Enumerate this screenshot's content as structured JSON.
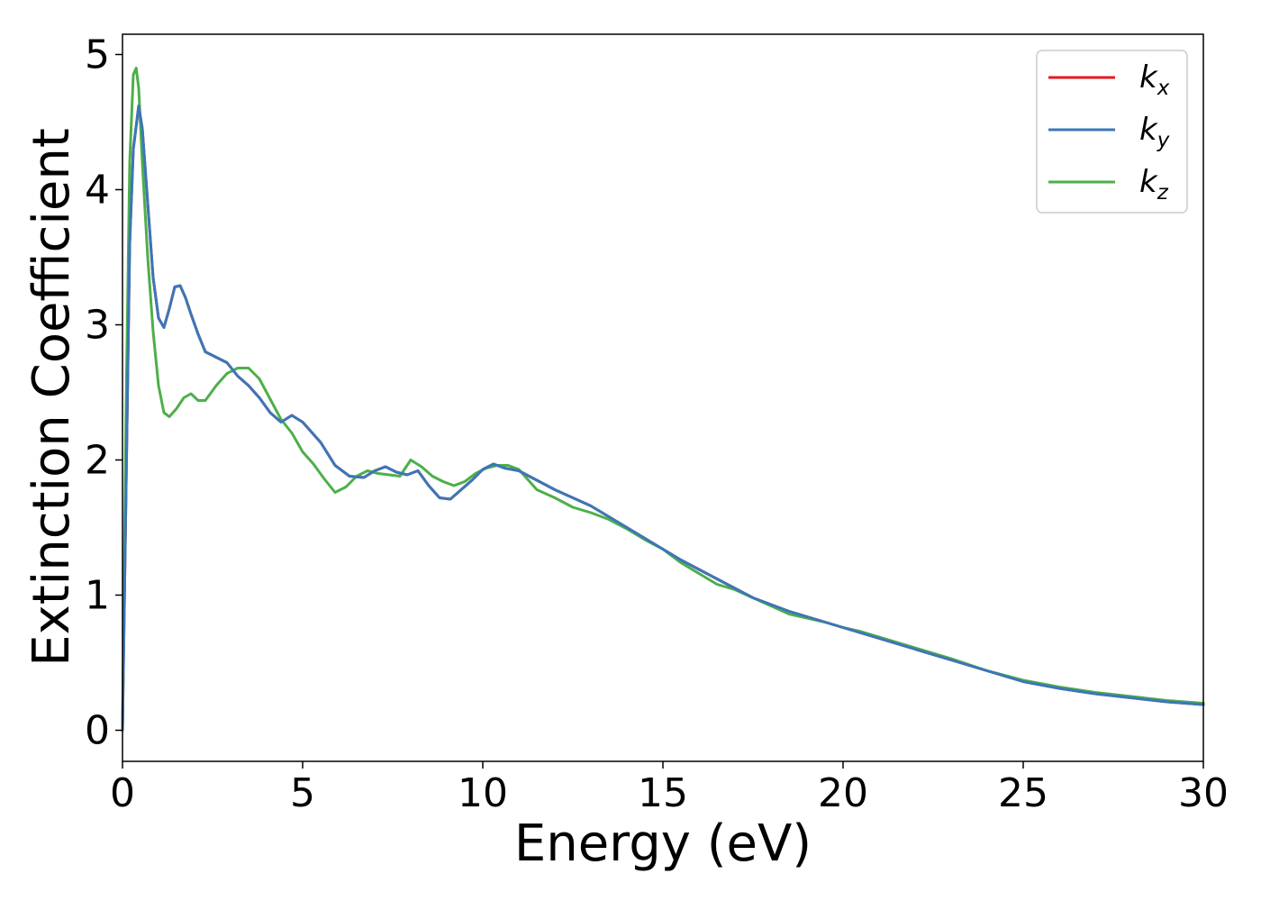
{
  "chart_data": {
    "type": "line",
    "title": "",
    "xlabel": "Energy (eV)",
    "ylabel": "Extinction Coefficient",
    "xlim": [
      0,
      30
    ],
    "ylim": [
      -0.23,
      5.15
    ],
    "xticks": [
      0,
      5,
      10,
      15,
      20,
      25,
      30
    ],
    "yticks": [
      0,
      1,
      2,
      3,
      4,
      5
    ],
    "xtick_labels": [
      "0",
      "5",
      "10",
      "15",
      "20",
      "25",
      "30"
    ],
    "ytick_labels": [
      "0",
      "1",
      "2",
      "3",
      "4",
      "5"
    ],
    "grid": false,
    "legend_position": "top-right",
    "series": [
      {
        "name": "k_x",
        "label_main": "k",
        "label_sub": "x",
        "color": "#e41a1c",
        "x": [
          0,
          0.1,
          0.2,
          0.3,
          0.45,
          0.55,
          0.7,
          0.85,
          1.0,
          1.15,
          1.3,
          1.45,
          1.6,
          1.75,
          1.9,
          2.1,
          2.3,
          2.6,
          2.9,
          3.2,
          3.5,
          3.8,
          4.1,
          4.4,
          4.7,
          5.0,
          5.2,
          5.5,
          5.9,
          6.3,
          6.7,
          7.0,
          7.3,
          7.6,
          7.9,
          8.2,
          8.5,
          8.8,
          9.1,
          9.4,
          9.7,
          10.0,
          10.3,
          10.6,
          11.0,
          11.5,
          12.0,
          12.5,
          13.0,
          13.5,
          14.0,
          14.5,
          15.0,
          15.5,
          16.0,
          16.5,
          17.0,
          17.5,
          18.0,
          18.5,
          19.0,
          19.5,
          20.0,
          20.5,
          21.0,
          22.0,
          23.0,
          24.0,
          25.0,
          26.0,
          27.0,
          28.0,
          29.0,
          30.0
        ],
        "y": [
          0,
          1.8,
          3.6,
          4.3,
          4.62,
          4.45,
          3.9,
          3.35,
          3.05,
          2.98,
          3.12,
          3.28,
          3.29,
          3.2,
          3.08,
          2.93,
          2.8,
          2.76,
          2.72,
          2.62,
          2.55,
          2.46,
          2.35,
          2.28,
          2.33,
          2.28,
          2.22,
          2.13,
          1.96,
          1.88,
          1.87,
          1.92,
          1.95,
          1.91,
          1.89,
          1.92,
          1.81,
          1.72,
          1.71,
          1.78,
          1.85,
          1.93,
          1.97,
          1.94,
          1.92,
          1.85,
          1.78,
          1.72,
          1.66,
          1.58,
          1.5,
          1.42,
          1.34,
          1.26,
          1.19,
          1.12,
          1.05,
          0.98,
          0.93,
          0.88,
          0.84,
          0.8,
          0.76,
          0.72,
          0.68,
          0.6,
          0.52,
          0.44,
          0.36,
          0.31,
          0.27,
          0.24,
          0.21,
          0.19
        ]
      },
      {
        "name": "k_y",
        "label_main": "k",
        "label_sub": "y",
        "color": "#3a77b8",
        "x": [
          0,
          0.1,
          0.2,
          0.3,
          0.45,
          0.55,
          0.7,
          0.85,
          1.0,
          1.15,
          1.3,
          1.45,
          1.6,
          1.75,
          1.9,
          2.1,
          2.3,
          2.6,
          2.9,
          3.2,
          3.5,
          3.8,
          4.1,
          4.4,
          4.7,
          5.0,
          5.2,
          5.5,
          5.9,
          6.3,
          6.7,
          7.0,
          7.3,
          7.6,
          7.9,
          8.2,
          8.5,
          8.8,
          9.1,
          9.4,
          9.7,
          10.0,
          10.3,
          10.6,
          11.0,
          11.5,
          12.0,
          12.5,
          13.0,
          13.5,
          14.0,
          14.5,
          15.0,
          15.5,
          16.0,
          16.5,
          17.0,
          17.5,
          18.0,
          18.5,
          19.0,
          19.5,
          20.0,
          20.5,
          21.0,
          22.0,
          23.0,
          24.0,
          25.0,
          26.0,
          27.0,
          28.0,
          29.0,
          30.0
        ],
        "y": [
          0,
          1.8,
          3.6,
          4.3,
          4.62,
          4.45,
          3.9,
          3.35,
          3.05,
          2.98,
          3.12,
          3.28,
          3.29,
          3.2,
          3.08,
          2.93,
          2.8,
          2.76,
          2.72,
          2.62,
          2.55,
          2.46,
          2.35,
          2.28,
          2.33,
          2.28,
          2.22,
          2.13,
          1.96,
          1.88,
          1.87,
          1.92,
          1.95,
          1.91,
          1.89,
          1.92,
          1.81,
          1.72,
          1.71,
          1.78,
          1.85,
          1.93,
          1.97,
          1.94,
          1.92,
          1.85,
          1.78,
          1.72,
          1.66,
          1.58,
          1.5,
          1.42,
          1.34,
          1.26,
          1.19,
          1.12,
          1.05,
          0.98,
          0.93,
          0.88,
          0.84,
          0.8,
          0.76,
          0.72,
          0.68,
          0.6,
          0.52,
          0.44,
          0.36,
          0.31,
          0.27,
          0.24,
          0.21,
          0.19
        ]
      },
      {
        "name": "k_z",
        "label_main": "k",
        "label_sub": "z",
        "color": "#4daf4a",
        "x": [
          0,
          0.1,
          0.2,
          0.3,
          0.38,
          0.45,
          0.55,
          0.7,
          0.85,
          1.0,
          1.15,
          1.3,
          1.5,
          1.7,
          1.9,
          2.1,
          2.3,
          2.6,
          2.9,
          3.2,
          3.5,
          3.8,
          4.1,
          4.4,
          4.7,
          5.0,
          5.3,
          5.6,
          5.9,
          6.2,
          6.5,
          6.8,
          7.1,
          7.4,
          7.7,
          8.0,
          8.3,
          8.6,
          8.9,
          9.2,
          9.5,
          9.8,
          10.1,
          10.4,
          10.7,
          11.0,
          11.5,
          12.0,
          12.5,
          13.0,
          13.5,
          14.0,
          14.5,
          15.0,
          15.5,
          16.0,
          16.5,
          17.0,
          17.5,
          18.0,
          18.5,
          19.0,
          19.5,
          20.0,
          20.5,
          21.0,
          22.0,
          23.0,
          24.0,
          25.0,
          26.0,
          27.0,
          28.0,
          29.0,
          30.0
        ],
        "y": [
          0,
          2.4,
          4.2,
          4.85,
          4.9,
          4.75,
          4.2,
          3.5,
          2.95,
          2.55,
          2.35,
          2.32,
          2.38,
          2.46,
          2.49,
          2.44,
          2.44,
          2.55,
          2.64,
          2.68,
          2.68,
          2.6,
          2.45,
          2.3,
          2.2,
          2.06,
          1.97,
          1.86,
          1.76,
          1.8,
          1.88,
          1.92,
          1.9,
          1.89,
          1.88,
          2.0,
          1.95,
          1.88,
          1.84,
          1.81,
          1.84,
          1.9,
          1.94,
          1.96,
          1.96,
          1.93,
          1.78,
          1.72,
          1.65,
          1.61,
          1.56,
          1.49,
          1.41,
          1.34,
          1.24,
          1.16,
          1.08,
          1.04,
          0.98,
          0.92,
          0.86,
          0.83,
          0.8,
          0.76,
          0.73,
          0.69,
          0.61,
          0.53,
          0.44,
          0.37,
          0.32,
          0.28,
          0.25,
          0.22,
          0.2
        ]
      }
    ]
  }
}
